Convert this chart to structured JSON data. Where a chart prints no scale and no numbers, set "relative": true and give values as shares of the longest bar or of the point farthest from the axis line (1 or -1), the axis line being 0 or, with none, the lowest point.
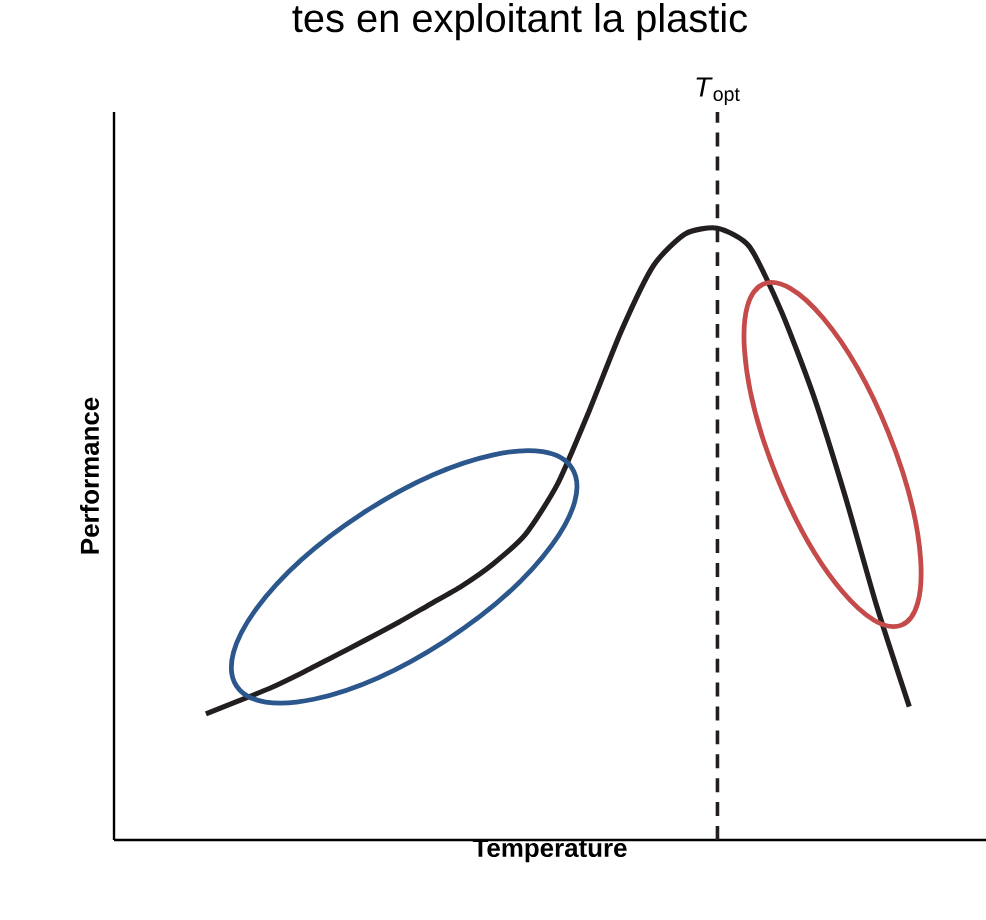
{
  "chart_data": {
    "type": "line",
    "relative": true,
    "xlabel": "Temperature",
    "ylabel": "Performance",
    "annotations": [
      "tes en exploitant la plastic",
      "*T*$_{opt}$"
    ],
    "categories": [
      null,
      null,
      null,
      null,
      null,
      null,
      null,
      null,
      null,
      null,
      null,
      null,
      null,
      null,
      null,
      null,
      null,
      null,
      null,
      null,
      null,
      null,
      null
    ],
    "series": [
      {
        "color": "#231f20",
        "values": [
          0.206,
          0.227,
          0.248,
          0.273,
          0.3,
          0.327,
          0.355,
          0.385,
          0.415,
          0.452,
          0.5,
          0.582,
          0.703,
          0.833,
          0.939,
          0.991,
          1.0,
          0.97,
          0.864,
          0.727,
          0.561,
          0.379,
          0.218
        ]
      }
    ]
  }
}
